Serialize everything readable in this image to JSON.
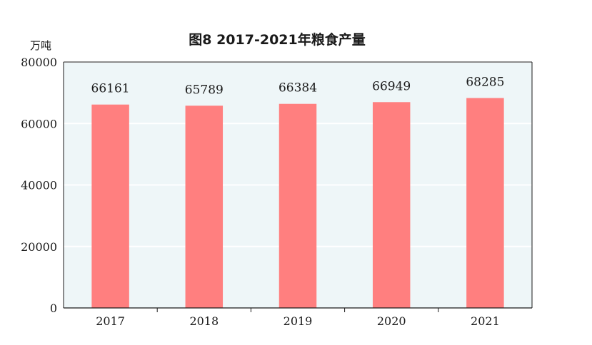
{
  "chart_data": {
    "type": "bar",
    "title": "图8   2017-2021年粮食产量",
    "ylabel": "万吨",
    "xlabel": "",
    "categories": [
      "2017",
      "2018",
      "2019",
      "2020",
      "2021"
    ],
    "values": [
      66161,
      65789,
      66384,
      66949,
      68285
    ],
    "ylim": [
      0,
      80000
    ],
    "yticks": [
      0,
      20000,
      40000,
      60000,
      80000
    ],
    "grid": true,
    "colors": {
      "bar": "#ff7f7f",
      "plot_background": "#eef6f8",
      "gridline": "#ffffff",
      "axis": "#1a1a1a"
    }
  }
}
